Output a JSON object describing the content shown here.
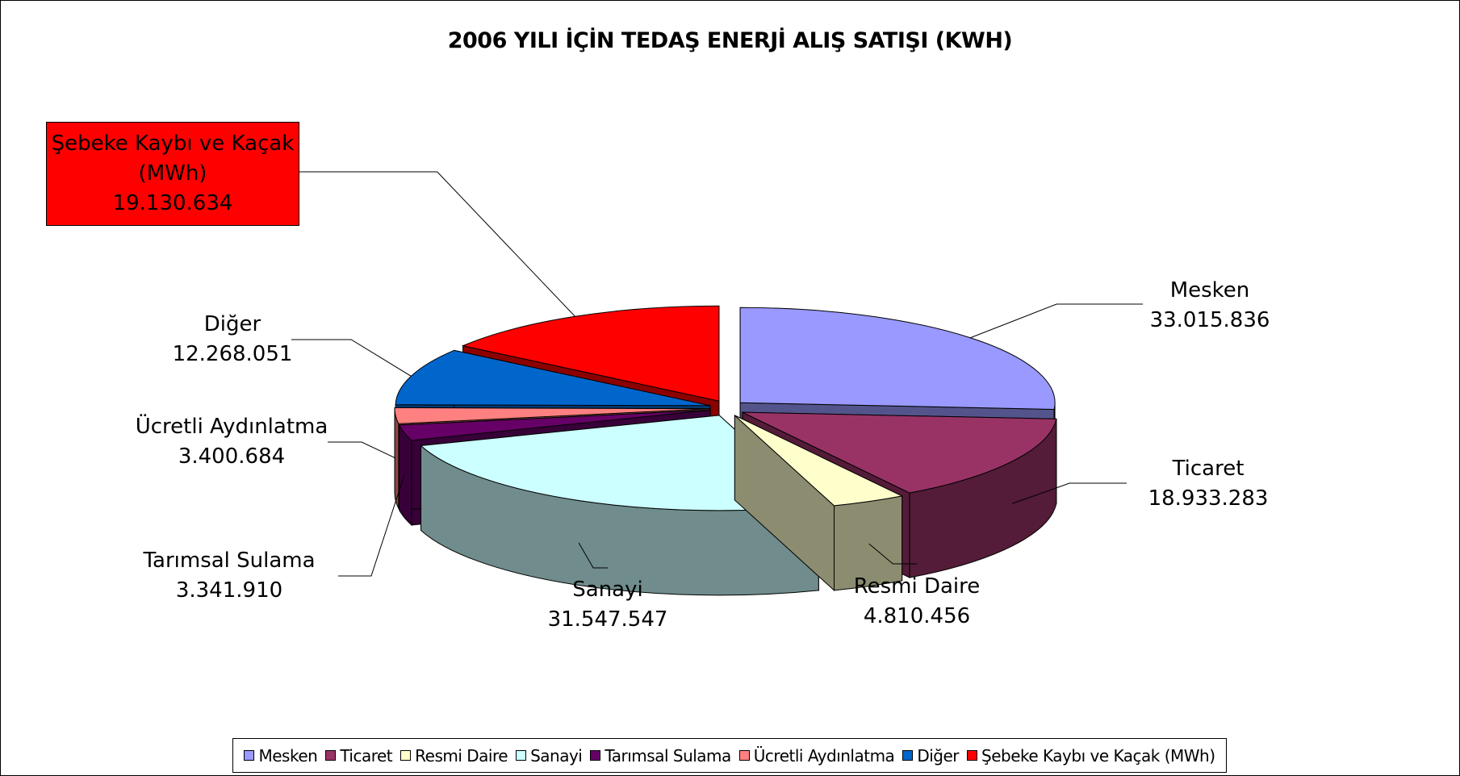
{
  "chart_data": {
    "type": "pie3d",
    "title": "2006 YILI İÇİN TEDAŞ ENERJİ ALIŞ SATIŞI (KWH)",
    "categories": [
      "Mesken",
      "Ticaret",
      "Resmi Daire",
      "Sanayi",
      "Tarımsal Sulama",
      "Ücretli Aydınlatma",
      "Diğer",
      "Şebeke Kaybı ve Kaçak (MWh)"
    ],
    "values": [
      33015836,
      18933283,
      4810456,
      31547547,
      3341910,
      3400684,
      12268051,
      19130634
    ],
    "value_labels": [
      "33.015.836",
      "18.933.283",
      "4.810.456",
      "31.547.547",
      "3.341.910",
      "3.400.684",
      "12.268.051",
      "19.130.634"
    ],
    "colors": [
      "#9999ff",
      "#993366",
      "#ffffcc",
      "#ccffff",
      "#660066",
      "#ff8080",
      "#0066cc",
      "#ff0000"
    ],
    "legend": "bottom"
  }
}
